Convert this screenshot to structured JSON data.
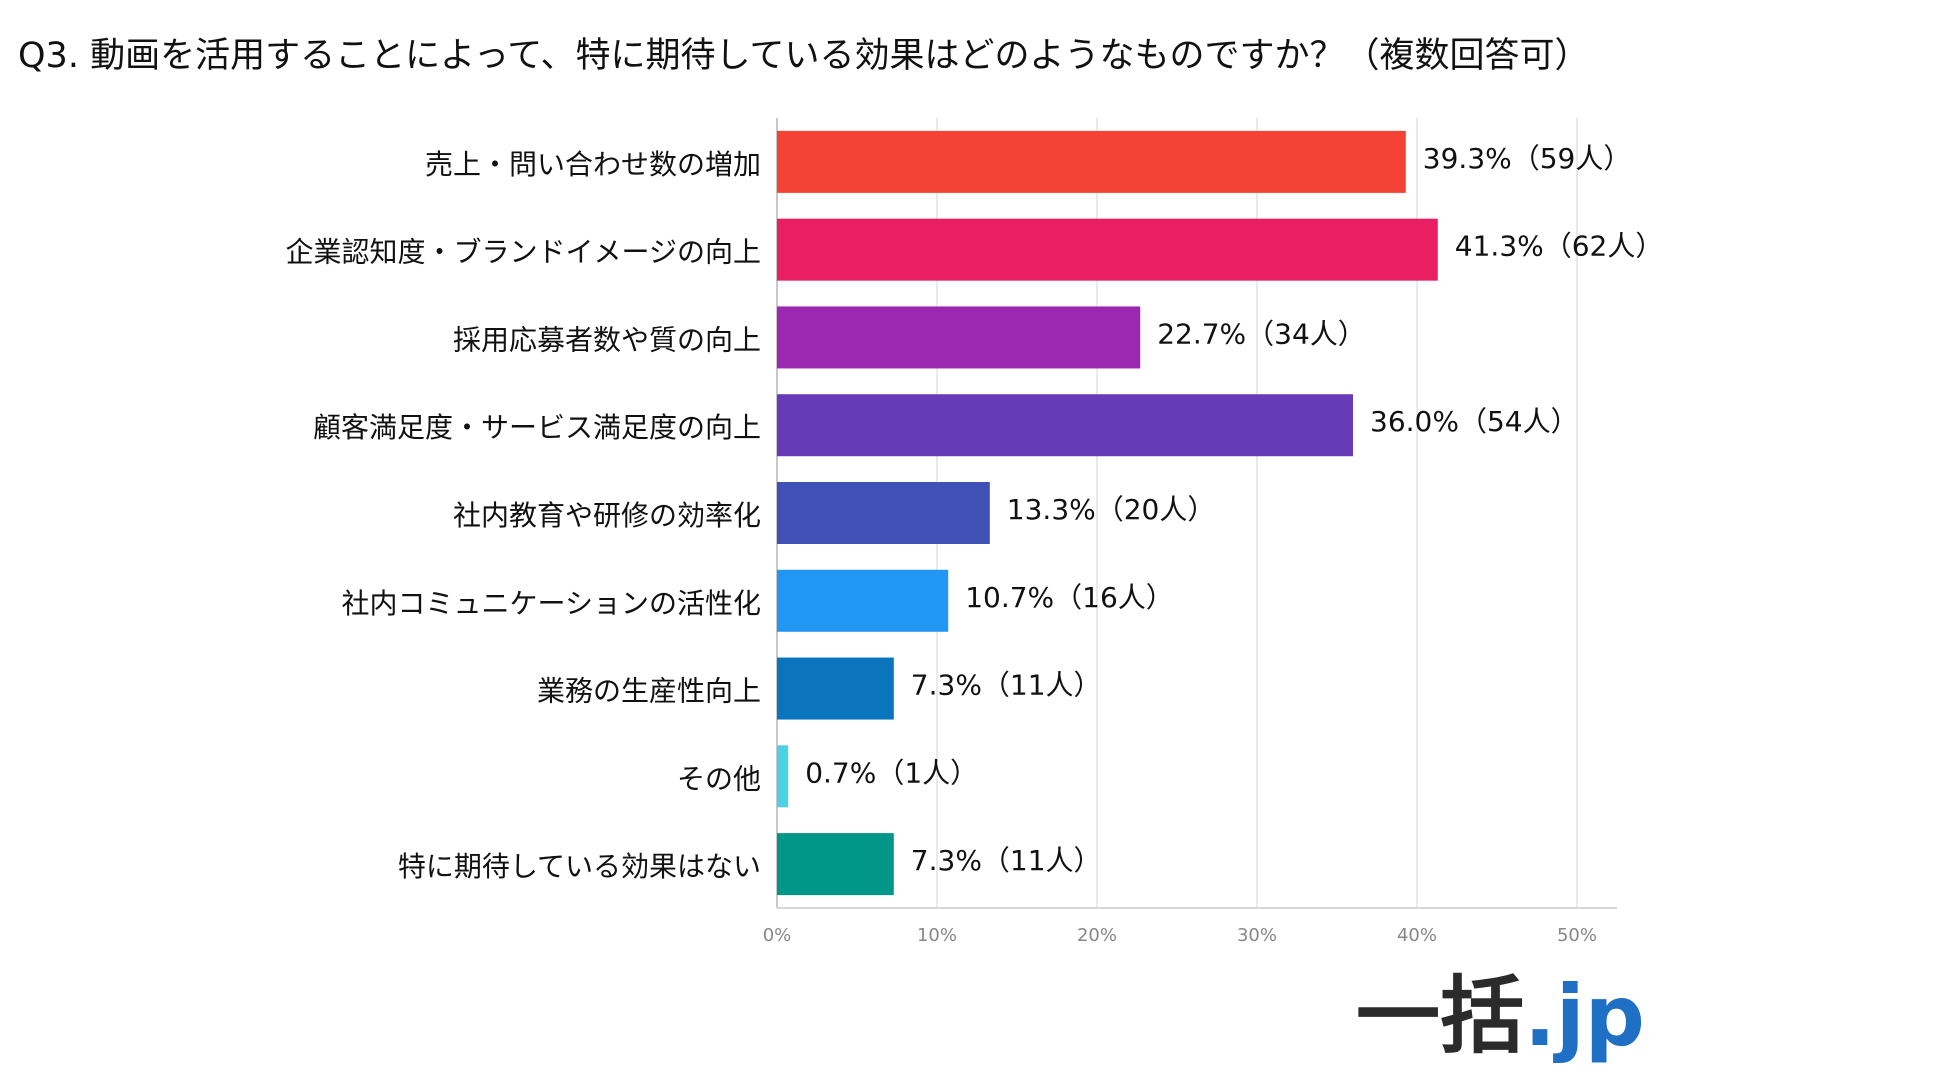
{
  "chart_data": {
    "type": "bar",
    "orientation": "horizontal",
    "title": "Q3. 動画を活用することによって、特に期待している効果はどのようなものですか？（複数回答可）",
    "categories": [
      "売上・問い合わせ数の増加",
      "企業認知度・ブランドイメージの向上",
      "採用応募者数や質の向上",
      "顧客満足度・サービス満足度の向上",
      "社内教育や研修の効率化",
      "社内コミュニケーションの活性化",
      "業務の生産性向上",
      "その他",
      "特に期待している効果はない"
    ],
    "values": [
      39.3,
      41.3,
      22.7,
      36.0,
      13.3,
      10.7,
      7.3,
      0.7,
      7.3
    ],
    "value_labels": [
      "39.3%（59人）",
      "41.3%（62人）",
      "22.7%（34人）",
      "36.0%（54人）",
      "13.3%（20人）",
      "10.7%（16人）",
      "7.3%（11人）",
      "0.7%（1人）",
      "7.3%（11人）"
    ],
    "colors": [
      "#f44336",
      "#e91e63",
      "#9c27b0",
      "#673ab7",
      "#3f51b5",
      "#2196f3",
      "#0a74bd",
      "#4dd0e1",
      "#009688"
    ],
    "xlim": [
      0,
      52.5
    ],
    "xticks": [
      {
        "value": 0,
        "label": "0%"
      },
      {
        "value": 10,
        "label": "10%"
      },
      {
        "value": 20,
        "label": "20%"
      },
      {
        "value": 30,
        "label": "30%"
      },
      {
        "value": 40,
        "label": "40%"
      },
      {
        "value": 50,
        "label": "50%"
      }
    ],
    "grid": true
  },
  "logo": {
    "main": "一括",
    "suffix": ".jp"
  }
}
